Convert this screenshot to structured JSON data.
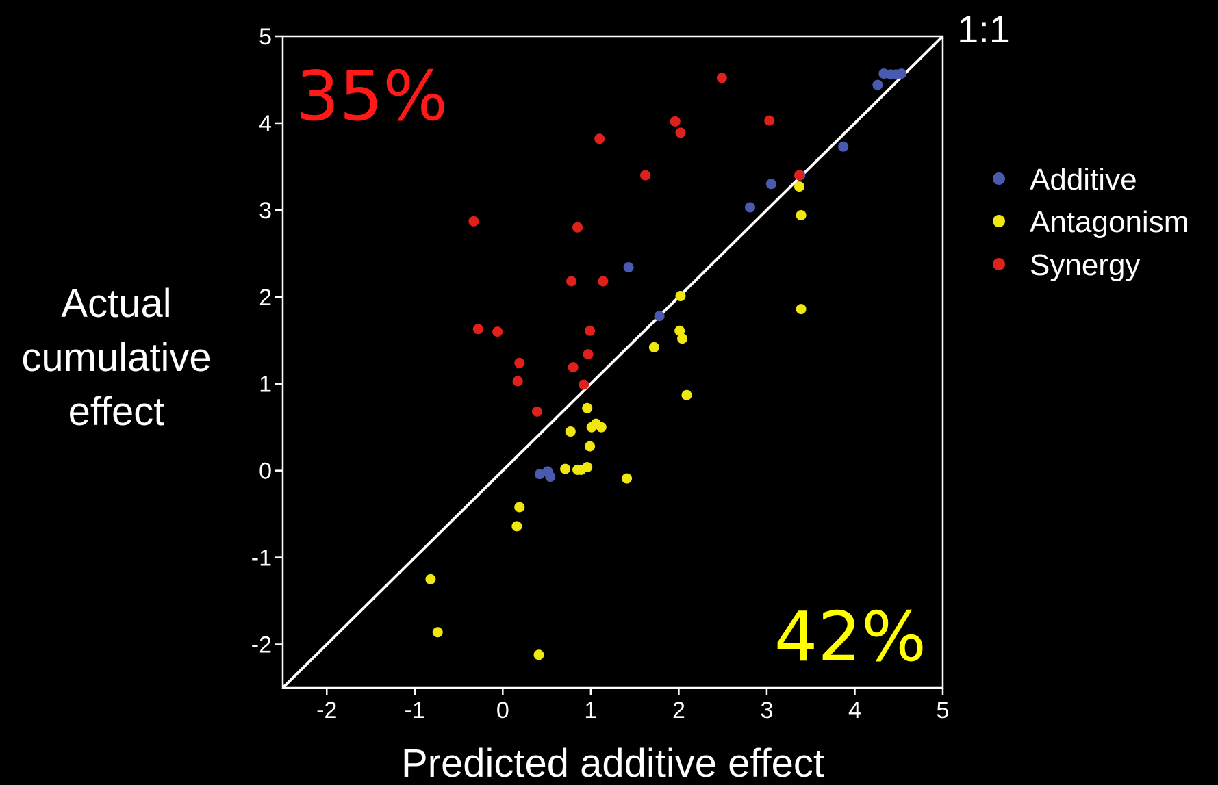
{
  "chart_data": {
    "type": "scatter",
    "xlabel": "Predicted additive effect",
    "ylabel": [
      "Actual",
      "cumulative",
      "effect"
    ],
    "xlim": [
      -2.5,
      5
    ],
    "ylim": [
      -2.5,
      5
    ],
    "xticks": [
      -2,
      -1,
      0,
      1,
      2,
      3,
      4,
      5
    ],
    "yticks": [
      -2,
      -1,
      0,
      1,
      2,
      3,
      4,
      5
    ],
    "grid": false,
    "legend_position": "right",
    "reference_line": {
      "label": "1:1",
      "slope": 1,
      "intercept": 0
    },
    "annotations": [
      {
        "text": "35%",
        "color": "#ff1a1a",
        "position": "top-left"
      },
      {
        "text": "42%",
        "color": "#ffff00",
        "position": "bottom-right"
      }
    ],
    "series": [
      {
        "name": "Additive",
        "color": "#4a5ab0",
        "points": [
          [
            4.33,
            4.57
          ],
          [
            4.41,
            4.56
          ],
          [
            4.47,
            4.56
          ],
          [
            4.53,
            4.57
          ],
          [
            4.26,
            4.44
          ],
          [
            3.87,
            3.73
          ],
          [
            3.38,
            3.4
          ],
          [
            3.05,
            3.3
          ],
          [
            2.81,
            3.03
          ],
          [
            1.43,
            2.34
          ],
          [
            1.78,
            1.78
          ],
          [
            0.42,
            -0.04
          ],
          [
            0.51,
            -0.01
          ],
          [
            0.54,
            -0.07
          ]
        ]
      },
      {
        "name": "Antagonism",
        "color": "#f0e610",
        "points": [
          [
            3.37,
            3.27
          ],
          [
            3.39,
            2.94
          ],
          [
            3.39,
            1.86
          ],
          [
            2.02,
            2.01
          ],
          [
            2.01,
            1.61
          ],
          [
            2.04,
            1.52
          ],
          [
            1.72,
            1.42
          ],
          [
            2.09,
            0.87
          ],
          [
            0.96,
            0.72
          ],
          [
            1.06,
            0.54
          ],
          [
            1.01,
            0.5
          ],
          [
            1.12,
            0.5
          ],
          [
            0.77,
            0.45
          ],
          [
            0.99,
            0.28
          ],
          [
            0.71,
            0.02
          ],
          [
            0.85,
            0.01
          ],
          [
            0.89,
            0.01
          ],
          [
            0.96,
            0.04
          ],
          [
            1.41,
            -0.09
          ],
          [
            0.19,
            -0.42
          ],
          [
            0.16,
            -0.64
          ],
          [
            -0.82,
            -1.25
          ],
          [
            -0.74,
            -1.86
          ],
          [
            0.41,
            -2.12
          ]
        ]
      },
      {
        "name": "Synergy",
        "color": "#e0201a",
        "points": [
          [
            2.49,
            4.52
          ],
          [
            1.96,
            4.02
          ],
          [
            3.03,
            4.03
          ],
          [
            2.02,
            3.89
          ],
          [
            1.1,
            3.82
          ],
          [
            1.62,
            3.4
          ],
          [
            3.37,
            3.4
          ],
          [
            -0.33,
            2.87
          ],
          [
            0.85,
            2.8
          ],
          [
            0.78,
            2.18
          ],
          [
            1.14,
            2.18
          ],
          [
            -0.28,
            1.63
          ],
          [
            -0.06,
            1.6
          ],
          [
            0.99,
            1.61
          ],
          [
            0.97,
            1.34
          ],
          [
            0.19,
            1.24
          ],
          [
            0.8,
            1.19
          ],
          [
            0.17,
            1.03
          ],
          [
            0.92,
            0.99
          ],
          [
            0.39,
            0.68
          ]
        ]
      }
    ]
  }
}
